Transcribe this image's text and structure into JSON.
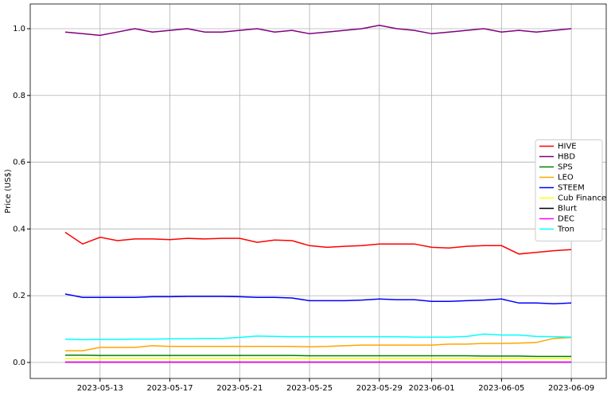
{
  "chart_data": {
    "type": "line",
    "y_label": "Price (US$)",
    "x": [
      "2023-05-11",
      "2023-05-12",
      "2023-05-13",
      "2023-05-14",
      "2023-05-15",
      "2023-05-16",
      "2023-05-17",
      "2023-05-18",
      "2023-05-19",
      "2023-05-20",
      "2023-05-21",
      "2023-05-22",
      "2023-05-23",
      "2023-05-24",
      "2023-05-25",
      "2023-05-26",
      "2023-05-27",
      "2023-05-28",
      "2023-05-29",
      "2023-05-30",
      "2023-05-31",
      "2023-06-01",
      "2023-06-02",
      "2023-06-03",
      "2023-06-04",
      "2023-06-05",
      "2023-06-06",
      "2023-06-07",
      "2023-06-08",
      "2023-06-09"
    ],
    "xlim": [
      "2023-05-09",
      "2023-06-11"
    ],
    "xticks": [
      "2023-05-13",
      "2023-05-17",
      "2023-05-21",
      "2023-05-25",
      "2023-05-29",
      "2023-06-01",
      "2023-06-05",
      "2023-06-09"
    ],
    "ylim": [
      -0.048,
      1.074
    ],
    "yticks": [
      {
        "value": 0,
        "label": "0.0"
      },
      0.2,
      0.4,
      0.6,
      0.8,
      {
        "value": 1,
        "label": "1.0"
      }
    ],
    "grid": true,
    "legend": "center right",
    "series": [
      {
        "name": "HIVE",
        "color": "#ff0000",
        "values": [
          0.39,
          0.355,
          0.375,
          0.365,
          0.37,
          0.37,
          0.368,
          0.372,
          0.37,
          0.372,
          0.372,
          0.36,
          0.367,
          0.365,
          0.35,
          0.345,
          0.348,
          0.35,
          0.355,
          0.355,
          0.355,
          0.345,
          0.343,
          0.348,
          0.35,
          0.35,
          0.325,
          0.33,
          0.335,
          0.338
        ]
      },
      {
        "name": "HBD",
        "color": "#800080",
        "values": [
          0.99,
          0.985,
          0.98,
          0.99,
          1.0,
          0.99,
          0.995,
          1.0,
          0.99,
          0.99,
          0.995,
          1.0,
          0.99,
          0.995,
          0.985,
          0.99,
          0.995,
          1.0,
          1.01,
          1.0,
          0.995,
          0.985,
          0.99,
          0.995,
          1.0,
          0.99,
          0.995,
          0.99,
          0.995,
          1.0
        ]
      },
      {
        "name": "SPS",
        "color": "#008000",
        "values": [
          0.022,
          0.022,
          0.021,
          0.021,
          0.021,
          0.021,
          0.021,
          0.021,
          0.021,
          0.021,
          0.021,
          0.021,
          0.021,
          0.021,
          0.02,
          0.02,
          0.02,
          0.02,
          0.02,
          0.02,
          0.02,
          0.02,
          0.02,
          0.02,
          0.019,
          0.019,
          0.019,
          0.018,
          0.018,
          0.018
        ]
      },
      {
        "name": "LEO",
        "color": "#ffa500",
        "values": [
          0.035,
          0.035,
          0.045,
          0.045,
          0.045,
          0.05,
          0.048,
          0.048,
          0.048,
          0.048,
          0.048,
          0.048,
          0.048,
          0.048,
          0.047,
          0.048,
          0.05,
          0.052,
          0.052,
          0.052,
          0.052,
          0.052,
          0.055,
          0.055,
          0.057,
          0.057,
          0.058,
          0.06,
          0.072,
          0.075
        ]
      },
      {
        "name": "STEEM",
        "color": "#0000ff",
        "values": [
          0.205,
          0.195,
          0.195,
          0.195,
          0.195,
          0.197,
          0.197,
          0.198,
          0.198,
          0.198,
          0.197,
          0.195,
          0.195,
          0.193,
          0.185,
          0.185,
          0.185,
          0.187,
          0.19,
          0.188,
          0.188,
          0.183,
          0.183,
          0.185,
          0.187,
          0.19,
          0.178,
          0.178,
          0.176,
          0.178
        ]
      },
      {
        "name": "Cub Finance",
        "color": "#ffff00",
        "values": [
          0.012,
          0.012,
          0.012,
          0.012,
          0.012,
          0.012,
          0.012,
          0.012,
          0.012,
          0.012,
          0.012,
          0.012,
          0.012,
          0.012,
          0.012,
          0.012,
          0.012,
          0.012,
          0.012,
          0.012,
          0.012,
          0.012,
          0.012,
          0.012,
          0.012,
          0.012,
          0.012,
          0.012,
          0.012,
          0.012
        ]
      },
      {
        "name": "Blurt",
        "color": "#000000",
        "values": [
          0.001,
          0.001,
          0.001,
          0.001,
          0.001,
          0.001,
          0.001,
          0.001,
          0.001,
          0.001,
          0.001,
          0.001,
          0.001,
          0.001,
          0.001,
          0.001,
          0.001,
          0.001,
          0.001,
          0.001,
          0.001,
          0.001,
          0.001,
          0.001,
          0.001,
          0.001,
          0.001,
          0.001,
          0.001,
          0.001
        ]
      },
      {
        "name": "DEC",
        "color": "#ff00ff",
        "values": [
          0.001,
          0.001,
          0.001,
          0.001,
          0.001,
          0.001,
          0.001,
          0.001,
          0.001,
          0.001,
          0.001,
          0.001,
          0.001,
          0.001,
          0.001,
          0.001,
          0.001,
          0.001,
          0.001,
          0.001,
          0.001,
          0.001,
          0.001,
          0.001,
          0.001,
          0.001,
          0.001,
          0.001,
          0.001,
          0.001
        ]
      },
      {
        "name": "Tron",
        "color": "#00ffff",
        "values": [
          0.07,
          0.068,
          0.069,
          0.069,
          0.07,
          0.07,
          0.071,
          0.071,
          0.072,
          0.072,
          0.075,
          0.079,
          0.078,
          0.077,
          0.077,
          0.077,
          0.077,
          0.077,
          0.077,
          0.077,
          0.076,
          0.076,
          0.076,
          0.078,
          0.085,
          0.082,
          0.082,
          0.078,
          0.077,
          0.076
        ]
      }
    ]
  }
}
